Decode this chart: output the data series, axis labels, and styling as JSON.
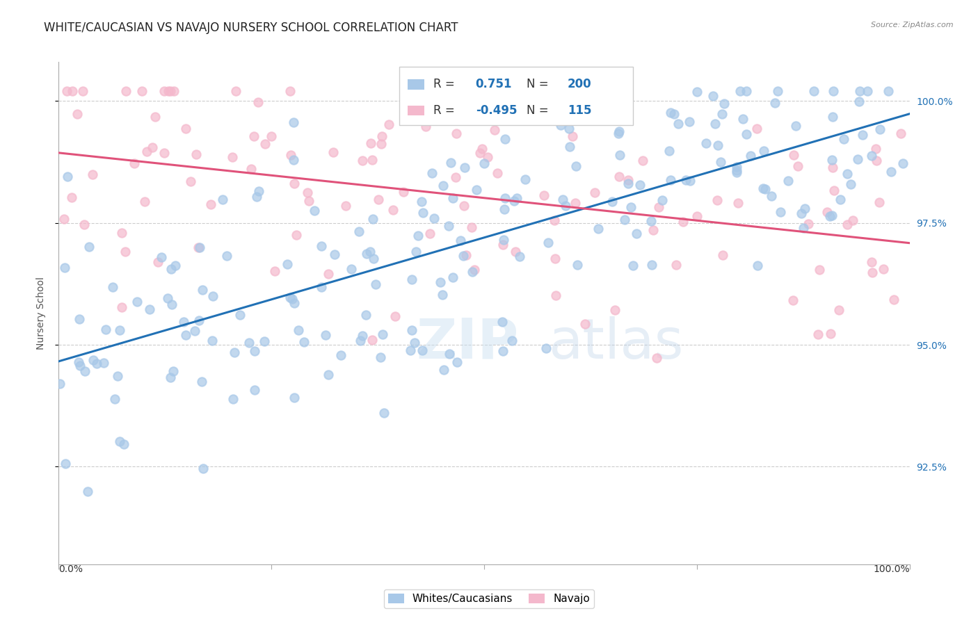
{
  "title": "WHITE/CAUCASIAN VS NAVAJO NURSERY SCHOOL CORRELATION CHART",
  "source": "Source: ZipAtlas.com",
  "ylabel": "Nursery School",
  "ytick_labels": [
    "92.5%",
    "95.0%",
    "97.5%",
    "100.0%"
  ],
  "ytick_values": [
    0.925,
    0.95,
    0.975,
    1.0
  ],
  "xlim": [
    0.0,
    1.0
  ],
  "ylim": [
    0.905,
    1.008
  ],
  "blue_R": 0.751,
  "blue_N": 200,
  "pink_R": -0.495,
  "pink_N": 115,
  "blue_dot_color": "#a8c8e8",
  "pink_dot_color": "#f4b8cc",
  "blue_line_color": "#2171b5",
  "pink_line_color": "#e0527a",
  "legend_label_blue": "Whites/Caucasians",
  "legend_label_pink": "Navajo",
  "background_color": "#ffffff",
  "grid_color": "#cccccc",
  "title_fontsize": 12,
  "label_fontsize": 10,
  "tick_fontsize": 10,
  "legend_value_color": "#2171b5",
  "legend_label_color": "#333333"
}
